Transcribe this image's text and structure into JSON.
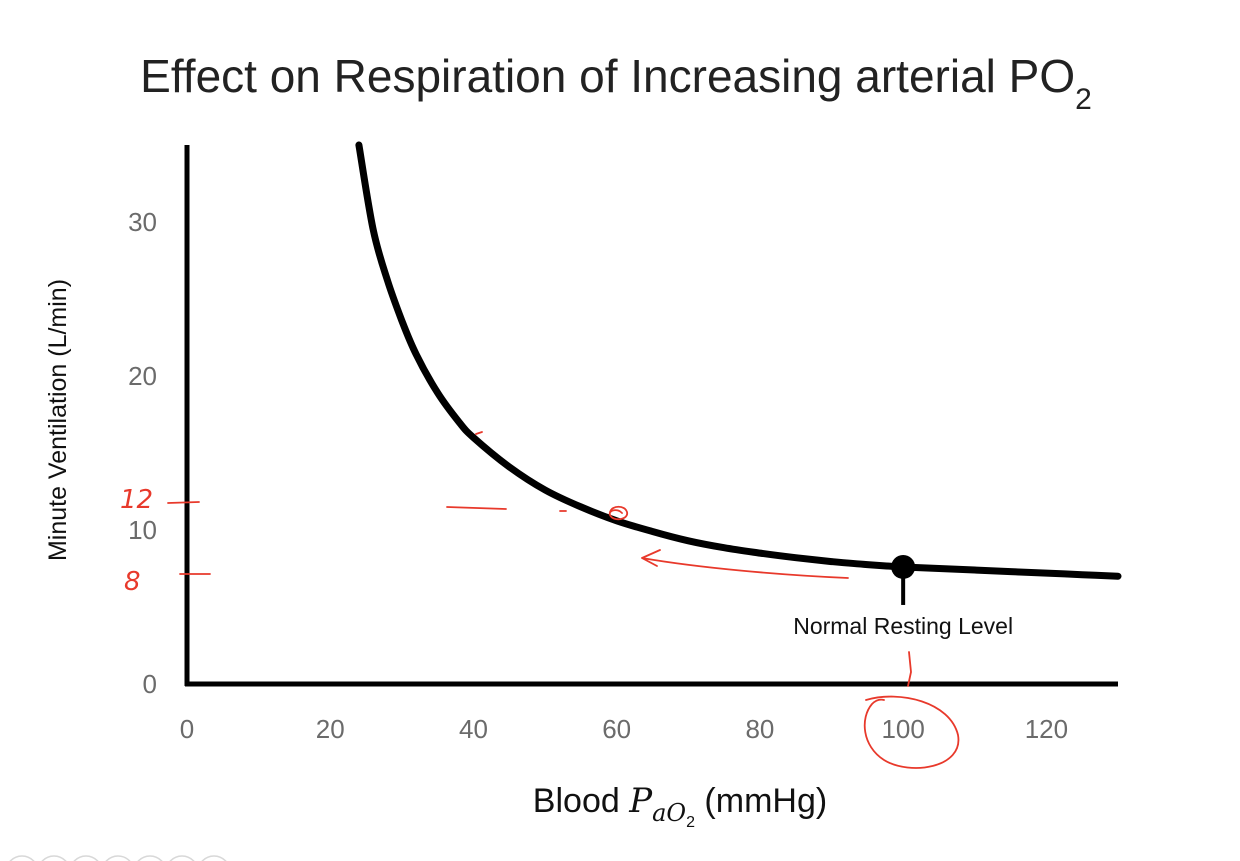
{
  "chart_data": {
    "type": "line",
    "title": {
      "main": "Effect on Respiration of Increasing arterial PO",
      "subscript": "2"
    },
    "xlabel": {
      "prefix": "Blood ",
      "symbol": "P",
      "subscript": "aO",
      "subsubscript": "2",
      "suffix": " (mmHg)"
    },
    "ylabel": "Minute Ventilation (L/min)",
    "xlim": [
      0,
      130
    ],
    "ylim": [
      0,
      35
    ],
    "x_ticks": [
      "0",
      "20",
      "40",
      "60",
      "80",
      "100",
      "120"
    ],
    "y_ticks": [
      "0",
      "10",
      "20",
      "30"
    ],
    "grid": false,
    "legend": "none",
    "series": [
      {
        "x": [
          24,
          26,
          28,
          30,
          32,
          35,
          38,
          40,
          45,
          50,
          55,
          60,
          65,
          70,
          75,
          80,
          85,
          90,
          95,
          100,
          105,
          110,
          115,
          120,
          125,
          130
        ],
        "values": [
          35.0,
          29.5,
          26.2,
          23.6,
          21.4,
          18.9,
          17.0,
          16.0,
          14.1,
          12.6,
          11.5,
          10.6,
          9.9,
          9.3,
          8.85,
          8.5,
          8.2,
          7.95,
          7.75,
          7.6,
          7.5,
          7.4,
          7.3,
          7.2,
          7.1,
          7.0
        ]
      }
    ],
    "marker": {
      "x": 100,
      "y": 7.6,
      "label": "Normal Resting Level"
    },
    "handwritten": {
      "y_mark_upper": "12",
      "y_mark_lower": "8",
      "y_mark_upper_value": 11.9,
      "y_mark_lower_value": 7.2,
      "circled_point": {
        "x": 60,
        "y": 11
      },
      "circled_tick": "100"
    },
    "colors": {
      "line": "#000000",
      "ink": "#e8392b",
      "axis": "#000000",
      "tick": "#6b6b6b"
    }
  }
}
